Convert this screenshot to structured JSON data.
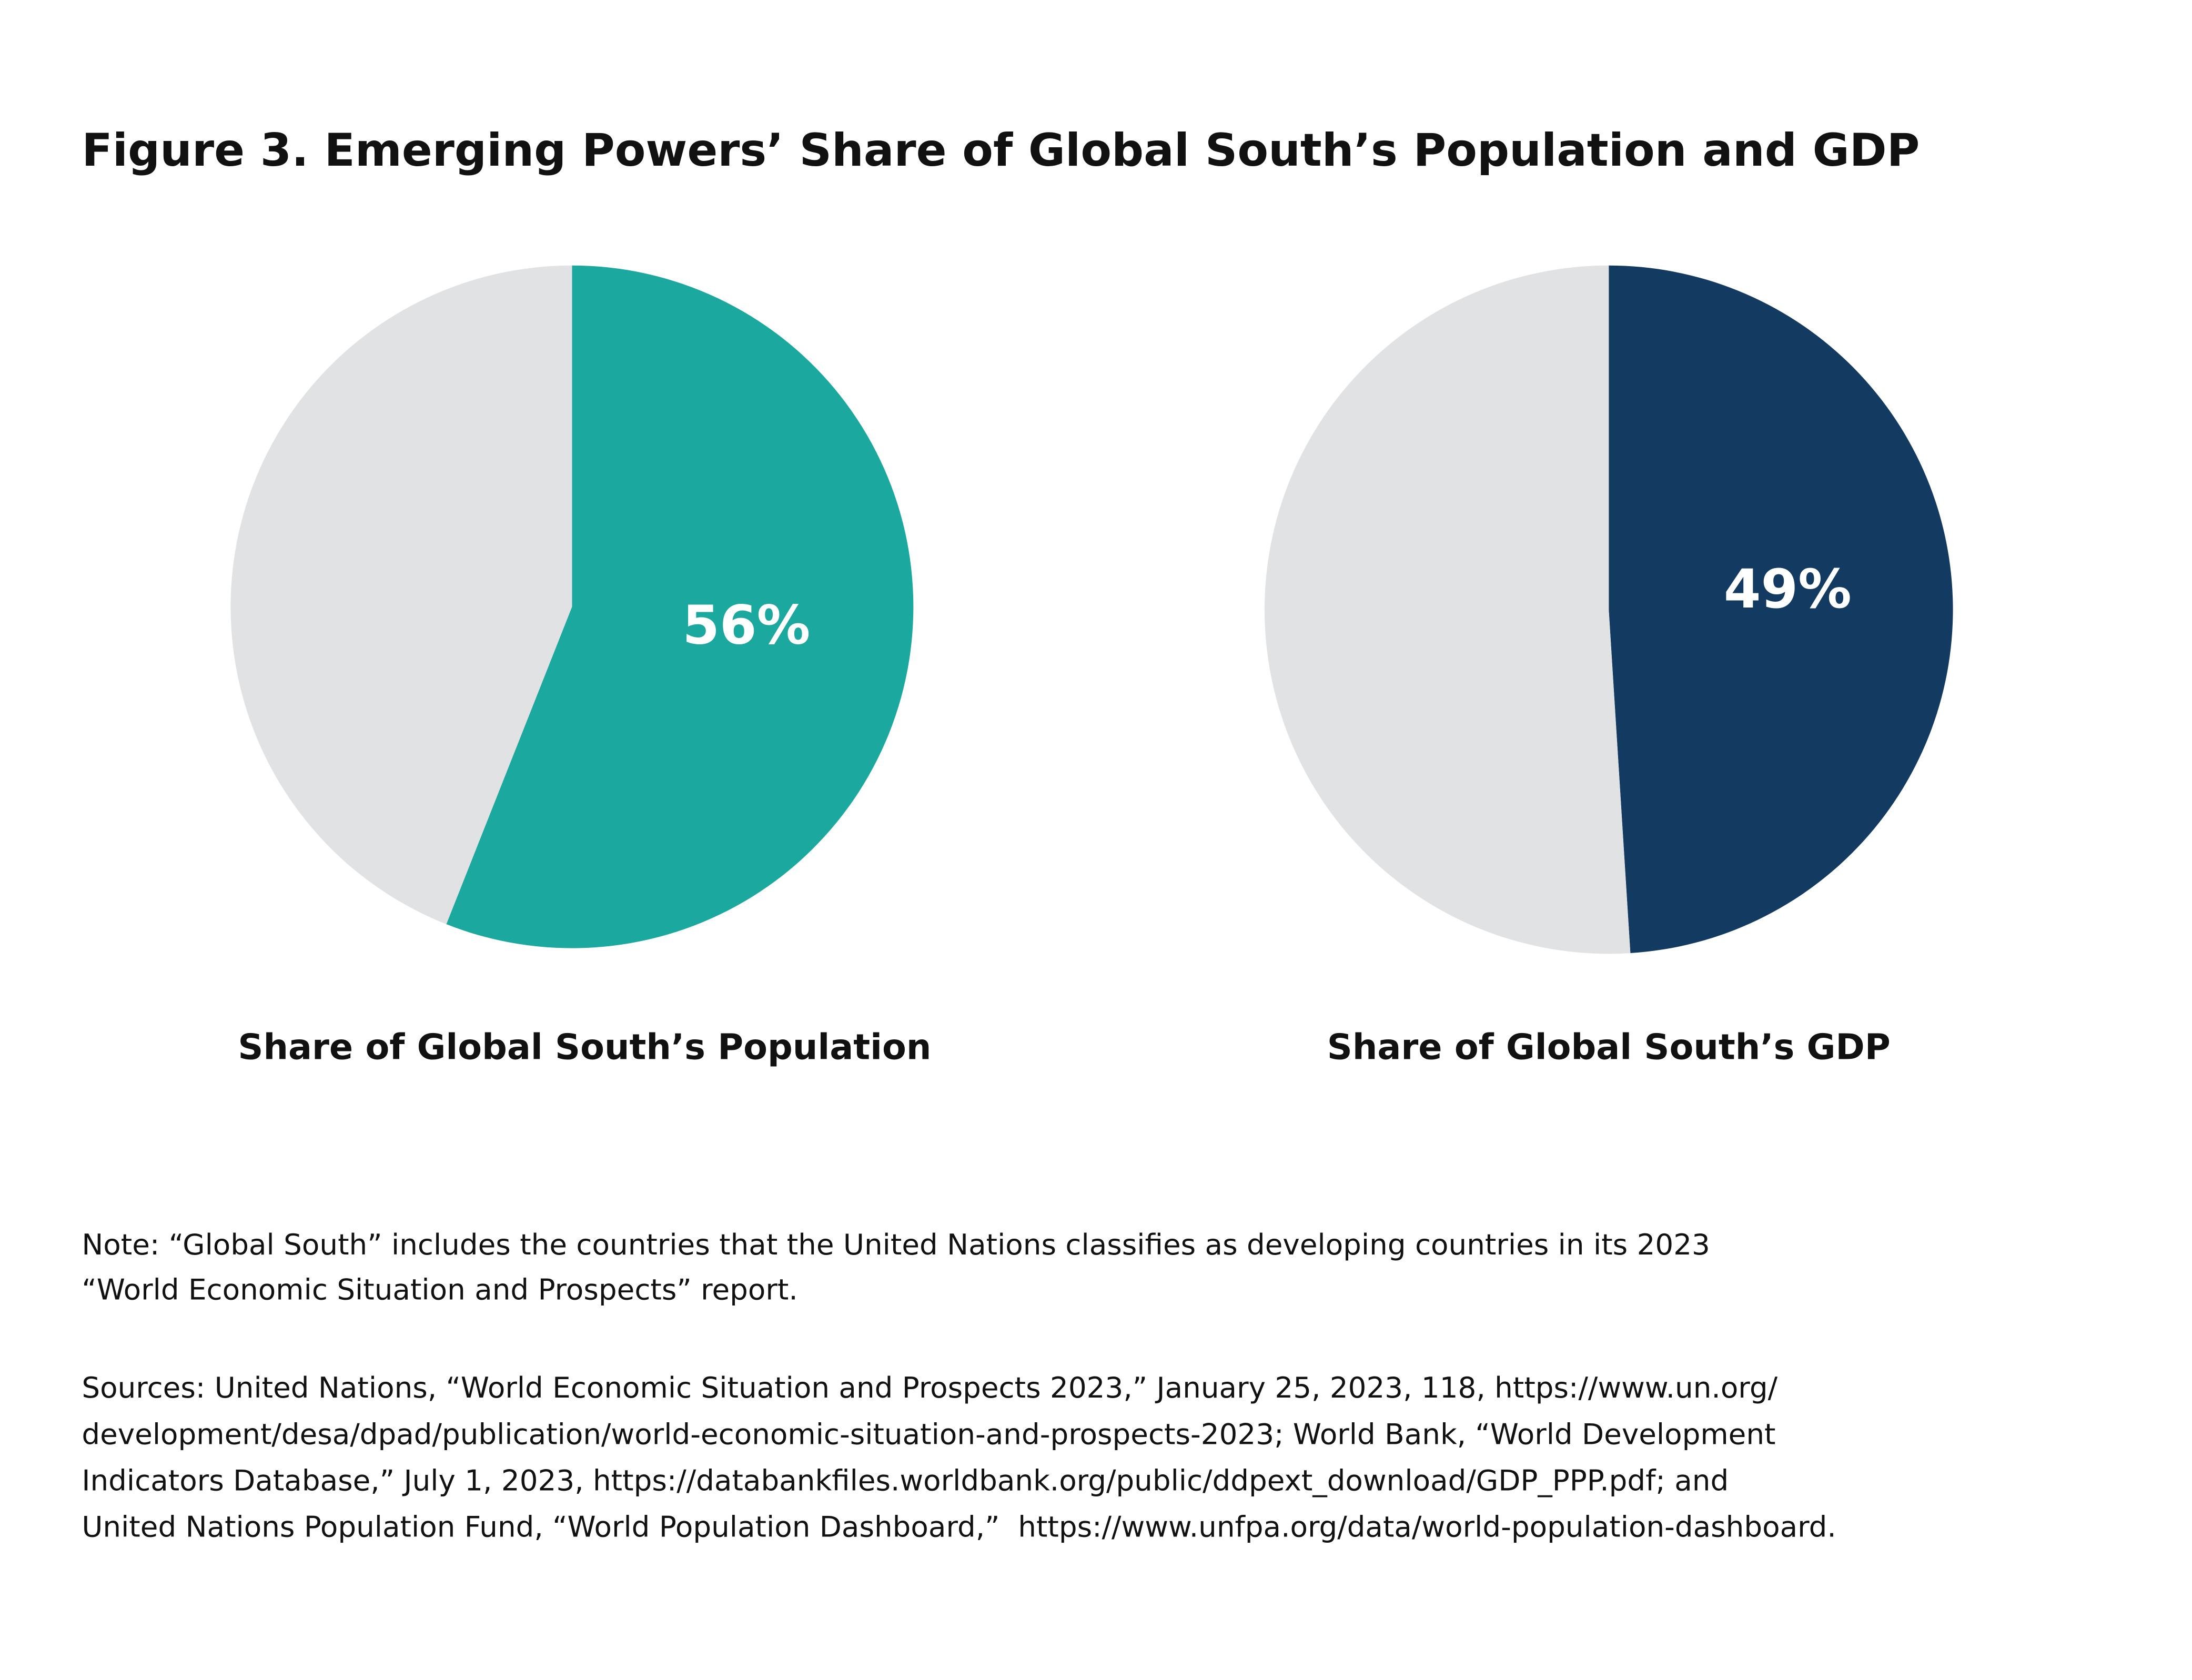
{
  "title": "Figure 3. Emerging Powers’ Share of Global South’s Population and GDP",
  "chart_data": [
    {
      "type": "pie",
      "title": "Share of Global South’s Population",
      "values": [
        56,
        44
      ],
      "value_labels": [
        "56%",
        null
      ],
      "colors": [
        "#1ba89f",
        "#e1e2e4"
      ]
    },
    {
      "type": "pie",
      "title": "Share of Global South’s GDP",
      "values": [
        49,
        51
      ],
      "value_labels": [
        "49%",
        null
      ],
      "colors": [
        "#133a60",
        "#e1e2e4"
      ]
    }
  ],
  "note": [
    "Note: “Global South” includes the countries that the United Nations classifies as developing countries in its 2023",
    "“World Economic Situation and Prospects” report."
  ],
  "sources": [
    "Sources: United Nations, “World Economic Situation and Prospects 2023,” January 25, 2023, 118, https://www.un.org/",
    "development/desa/dpad/publication/world-economic-situation-and-prospects-2023; World Bank, “World Development",
    "Indicators Database,” July 1, 2023, https://databankfiles.worldbank.org/public/ddpext_download/GDP_PPP.pdf; and",
    "United Nations Population Fund, “World Population Dashboard,”  https://www.unfpa.org/data/world-population-dashboard."
  ]
}
